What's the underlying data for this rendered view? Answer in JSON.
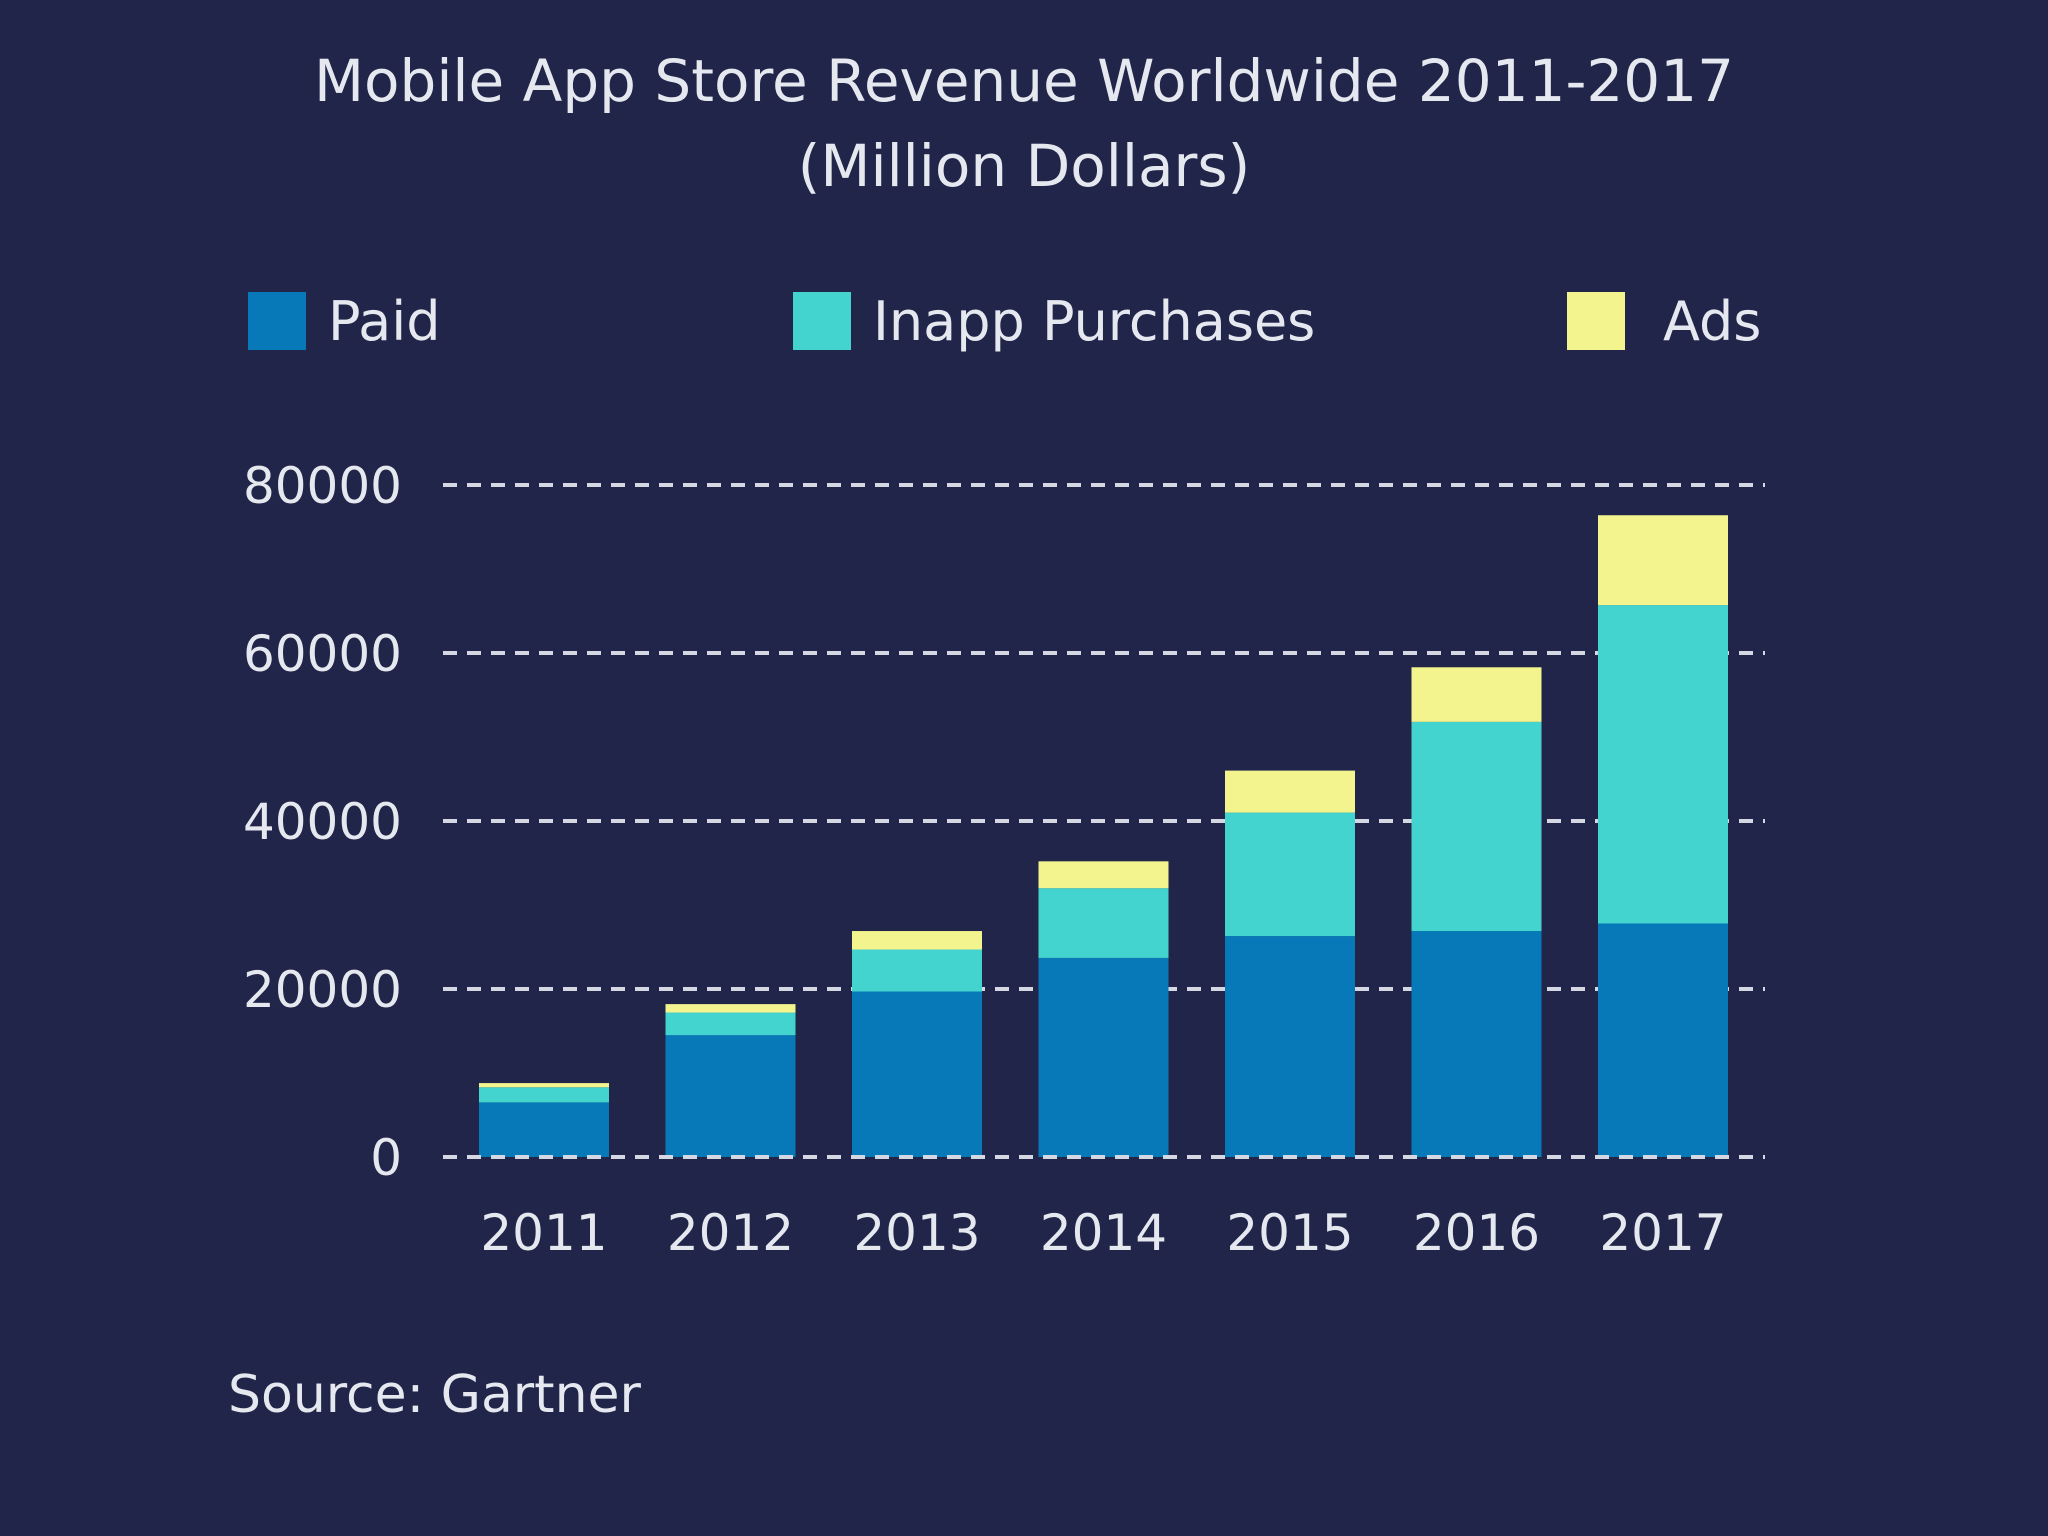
{
  "chart_data": {
    "type": "bar",
    "stacked": true,
    "title": "Mobile App Store Revenue Worldwide 2011-2017",
    "subtitle": "(Million Dollars)",
    "categories": [
      "2011",
      "2012",
      "2013",
      "2014",
      "2015",
      "2016",
      "2017"
    ],
    "series": [
      {
        "name": "Paid",
        "color": "#0879b8",
        "values": [
          6500,
          14500,
          19700,
          23700,
          26300,
          26900,
          27800
        ]
      },
      {
        "name": "Inapp Purchases",
        "color": "#44d4cf",
        "values": [
          1800,
          2700,
          5000,
          8300,
          14700,
          24900,
          37900
        ]
      },
      {
        "name": "Ads",
        "color": "#f3f48e",
        "values": [
          500,
          1000,
          2200,
          3200,
          5000,
          6500,
          10700
        ]
      }
    ],
    "y_ticks": [
      "0",
      "20000",
      "40000",
      "60000",
      "80000"
    ],
    "ylim": [
      0,
      80000
    ],
    "grid": true,
    "legend_position": "top",
    "source": "Source: Gartner"
  },
  "colors": {
    "background": "#202549",
    "gridline": "#d5d8e3",
    "text": "#e6e8f0"
  }
}
